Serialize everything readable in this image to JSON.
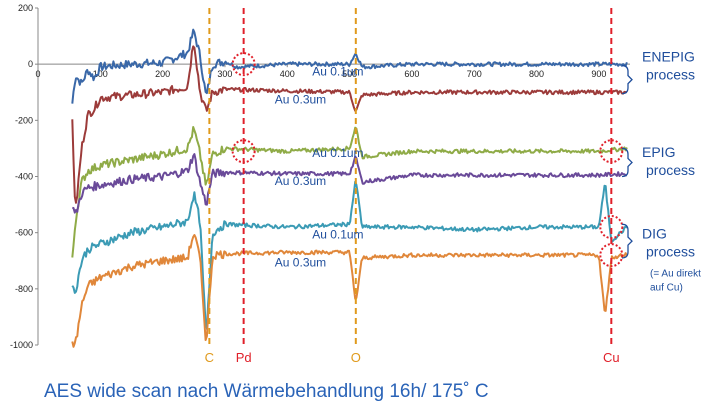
{
  "chart_data": {
    "type": "line",
    "xlim": [
      0,
      950
    ],
    "ylim": [
      -1000,
      200
    ],
    "x_ticks": [
      0,
      100,
      200,
      300,
      400,
      500,
      600,
      700,
      800,
      900
    ],
    "y_ticks": [
      200,
      0,
      -200,
      -400,
      -600,
      -800,
      -1000
    ],
    "grid": false,
    "series": [
      {
        "name": "Au 0.1um",
        "group": "ENEPIG process",
        "color": "#3a68a8",
        "baseline": 0,
        "points": [
          [
            55,
            -140
          ],
          [
            60,
            -40
          ],
          [
            70,
            -70
          ],
          [
            80,
            -20
          ],
          [
            90,
            -50
          ],
          [
            100,
            -10
          ],
          [
            120,
            -5
          ],
          [
            150,
            0
          ],
          [
            200,
            5
          ],
          [
            240,
            40
          ],
          [
            250,
            120
          ],
          [
            260,
            30
          ],
          [
            270,
            -120
          ],
          [
            280,
            0
          ],
          [
            300,
            10
          ],
          [
            320,
            -10
          ],
          [
            400,
            0
          ],
          [
            500,
            0
          ],
          [
            510,
            40
          ],
          [
            520,
            -10
          ],
          [
            600,
            0
          ],
          [
            700,
            0
          ],
          [
            800,
            0
          ],
          [
            900,
            0
          ],
          [
            945,
            0
          ]
        ]
      },
      {
        "name": "Au 0.3um",
        "group": "ENEPIG process",
        "color": "#9c3b3a",
        "baseline": -100,
        "points": [
          [
            55,
            -200
          ],
          [
            60,
            -530
          ],
          [
            70,
            -300
          ],
          [
            80,
            -180
          ],
          [
            90,
            -160
          ],
          [
            100,
            -120
          ],
          [
            150,
            -110
          ],
          [
            200,
            -100
          ],
          [
            240,
            -80
          ],
          [
            250,
            90
          ],
          [
            260,
            -100
          ],
          [
            270,
            -170
          ],
          [
            280,
            -100
          ],
          [
            300,
            -90
          ],
          [
            400,
            -95
          ],
          [
            500,
            -100
          ],
          [
            510,
            -170
          ],
          [
            520,
            -110
          ],
          [
            600,
            -100
          ],
          [
            700,
            -100
          ],
          [
            800,
            -100
          ],
          [
            900,
            -100
          ],
          [
            945,
            -100
          ]
        ]
      },
      {
        "name": "Au 0.1um",
        "group": "EPIG process",
        "color": "#8fab47",
        "baseline": -310,
        "points": [
          [
            55,
            -700
          ],
          [
            60,
            -560
          ],
          [
            70,
            -420
          ],
          [
            80,
            -380
          ],
          [
            100,
            -360
          ],
          [
            150,
            -340
          ],
          [
            200,
            -320
          ],
          [
            240,
            -300
          ],
          [
            250,
            -230
          ],
          [
            260,
            -320
          ],
          [
            270,
            -440
          ],
          [
            280,
            -320
          ],
          [
            300,
            -300
          ],
          [
            400,
            -310
          ],
          [
            500,
            -300
          ],
          [
            510,
            -220
          ],
          [
            520,
            -330
          ],
          [
            600,
            -310
          ],
          [
            700,
            -310
          ],
          [
            800,
            -310
          ],
          [
            900,
            -310
          ],
          [
            945,
            -300
          ]
        ]
      },
      {
        "name": "Au 0.3um",
        "group": "EPIG process",
        "color": "#6a4a99",
        "baseline": -390,
        "points": [
          [
            55,
            -500
          ],
          [
            60,
            -540
          ],
          [
            70,
            -460
          ],
          [
            80,
            -440
          ],
          [
            100,
            -430
          ],
          [
            150,
            -410
          ],
          [
            200,
            -400
          ],
          [
            240,
            -380
          ],
          [
            250,
            -320
          ],
          [
            260,
            -420
          ],
          [
            270,
            -500
          ],
          [
            280,
            -390
          ],
          [
            300,
            -385
          ],
          [
            400,
            -390
          ],
          [
            500,
            -390
          ],
          [
            510,
            -330
          ],
          [
            520,
            -420
          ],
          [
            600,
            -395
          ],
          [
            700,
            -395
          ],
          [
            800,
            -395
          ],
          [
            900,
            -395
          ],
          [
            945,
            -390
          ]
        ]
      },
      {
        "name": "Au 0.1um",
        "group": "DIG process",
        "color": "#3b9bb5",
        "baseline": -580,
        "points": [
          [
            55,
            -800
          ],
          [
            60,
            -810
          ],
          [
            70,
            -700
          ],
          [
            80,
            -660
          ],
          [
            100,
            -640
          ],
          [
            150,
            -600
          ],
          [
            200,
            -580
          ],
          [
            240,
            -560
          ],
          [
            250,
            -460
          ],
          [
            260,
            -560
          ],
          [
            270,
            -980
          ],
          [
            280,
            -600
          ],
          [
            300,
            -570
          ],
          [
            400,
            -580
          ],
          [
            500,
            -570
          ],
          [
            510,
            -410
          ],
          [
            520,
            -580
          ],
          [
            600,
            -580
          ],
          [
            700,
            -590
          ],
          [
            800,
            -580
          ],
          [
            900,
            -580
          ],
          [
            910,
            -420
          ],
          [
            920,
            -630
          ],
          [
            945,
            -580
          ]
        ]
      },
      {
        "name": "Au 0.3um",
        "group": "DIG process",
        "color": "#e0873a",
        "baseline": -670,
        "points": [
          [
            55,
            -990
          ],
          [
            60,
            -1000
          ],
          [
            70,
            -860
          ],
          [
            80,
            -790
          ],
          [
            100,
            -760
          ],
          [
            150,
            -720
          ],
          [
            200,
            -700
          ],
          [
            240,
            -690
          ],
          [
            250,
            -600
          ],
          [
            260,
            -690
          ],
          [
            270,
            -1000
          ],
          [
            280,
            -680
          ],
          [
            300,
            -675
          ],
          [
            400,
            -670
          ],
          [
            500,
            -670
          ],
          [
            510,
            -850
          ],
          [
            520,
            -690
          ],
          [
            600,
            -680
          ],
          [
            700,
            -680
          ],
          [
            800,
            -680
          ],
          [
            900,
            -680
          ],
          [
            910,
            -900
          ],
          [
            920,
            -690
          ],
          [
            945,
            -675
          ]
        ]
      }
    ],
    "annotations": {
      "vertical_lines": [
        {
          "label": "C",
          "x": 275,
          "color": "#e09a1c",
          "dash": "orange"
        },
        {
          "label": "Pd",
          "x": 330,
          "color": "#e0202a",
          "dash": "red"
        },
        {
          "label": "O",
          "x": 510,
          "color": "#e09a1c",
          "dash": "orange"
        },
        {
          "label": "Cu",
          "x": 920,
          "color": "#e0202a",
          "dash": "red"
        }
      ],
      "group_labels": [
        {
          "line1": "ENEPIG",
          "line2": "process"
        },
        {
          "line1": "EPIG",
          "line2": "process"
        },
        {
          "line1": "DIG",
          "line2": "process",
          "note1": "(= Au direkt",
          "note2": "auf Cu)"
        }
      ]
    },
    "title": ""
  },
  "caption": "AES wide scan nach Wärmebehandlung 16h/ 175˚ C"
}
